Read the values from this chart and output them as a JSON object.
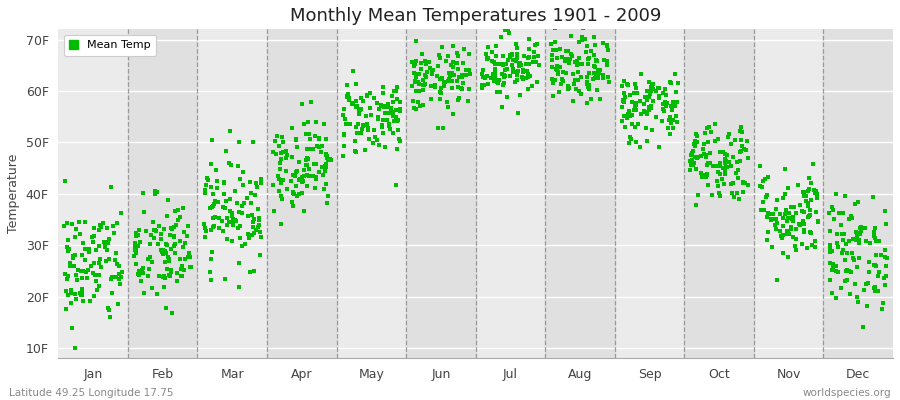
{
  "title": "Monthly Mean Temperatures 1901 - 2009",
  "ylabel": "Temperature",
  "bottom_left": "Latitude 49.25 Longitude 17.75",
  "bottom_right": "worldspecies.org",
  "legend_label": "Mean Temp",
  "marker_color": "#00bb00",
  "background_color": "#ffffff",
  "plot_bg_color": "#ebebeb",
  "band_color_odd": "#e0e0e0",
  "ytick_labels": [
    "10F",
    "20F",
    "30F",
    "40F",
    "50F",
    "60F",
    "70F"
  ],
  "ytick_values": [
    10,
    20,
    30,
    40,
    50,
    60,
    70
  ],
  "ylim": [
    8,
    72
  ],
  "months": [
    "Jan",
    "Feb",
    "Mar",
    "Apr",
    "May",
    "Jun",
    "Jul",
    "Aug",
    "Sep",
    "Oct",
    "Nov",
    "Dec"
  ],
  "month_means_F": [
    26.0,
    28.5,
    37.0,
    46.0,
    55.0,
    62.0,
    65.0,
    64.0,
    57.0,
    46.5,
    36.0,
    28.5
  ],
  "month_stds_F": [
    6.0,
    5.5,
    5.5,
    4.5,
    3.8,
    3.2,
    3.2,
    3.2,
    3.5,
    4.0,
    4.5,
    5.5
  ],
  "n_years": 109,
  "random_seed": 42,
  "marker_size": 5,
  "figwidth": 9.0,
  "figheight": 4.0,
  "dpi": 100
}
